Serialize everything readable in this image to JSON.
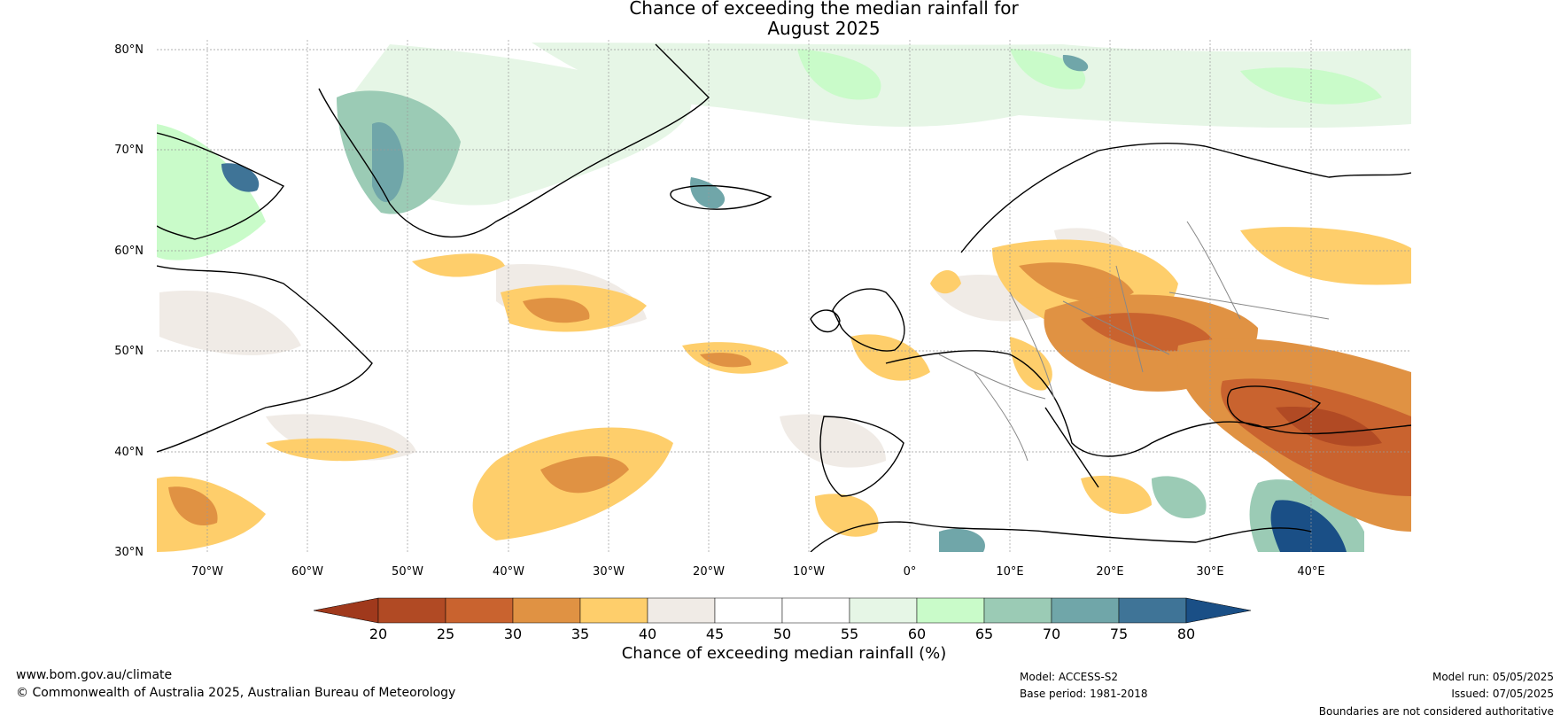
{
  "title": {
    "line1": "Chance of exceeding the median rainfall for",
    "line2": "August 2025"
  },
  "map": {
    "lat_ticks": [
      "80°N",
      "70°N",
      "60°N",
      "50°N",
      "40°N",
      "30°N"
    ],
    "lon_ticks": [
      "70°W",
      "60°W",
      "50°W",
      "40°W",
      "30°W",
      "20°W",
      "10°W",
      "0°",
      "10°E",
      "20°E",
      "30°E",
      "40°E"
    ],
    "lat_range": [
      30,
      81
    ],
    "lon_range": [
      -75,
      50
    ]
  },
  "colorbar": {
    "title": "Chance of exceeding median rainfall (%)",
    "ticks": [
      "20",
      "25",
      "30",
      "35",
      "40",
      "45",
      "50",
      "55",
      "60",
      "65",
      "70",
      "75",
      "80"
    ],
    "colors": [
      "#a0391c",
      "#b14a24",
      "#c9632f",
      "#e09243",
      "#fece6b",
      "#f0ebe6",
      "#ffffff",
      "#ffffff",
      "#e6f6e6",
      "#c9fbc9",
      "#9bcbb5",
      "#70a6a9",
      "#3f7497",
      "#1a4f86"
    ],
    "land_color": "#cfcfcf",
    "coast_color": "#000000",
    "border_color": "#888888"
  },
  "footer": {
    "url": "www.bom.gov.au/climate",
    "copyright": "© Commonwealth of Australia 2025, Australian Bureau of Meteorology",
    "model": "Model: ACCESS-S2",
    "base_period": "Base period: 1981-2018",
    "model_run": "Model run: 05/05/2025",
    "issued": "Issued: 07/05/2025",
    "boundaries": "Boundaries are not considered authoritative"
  }
}
